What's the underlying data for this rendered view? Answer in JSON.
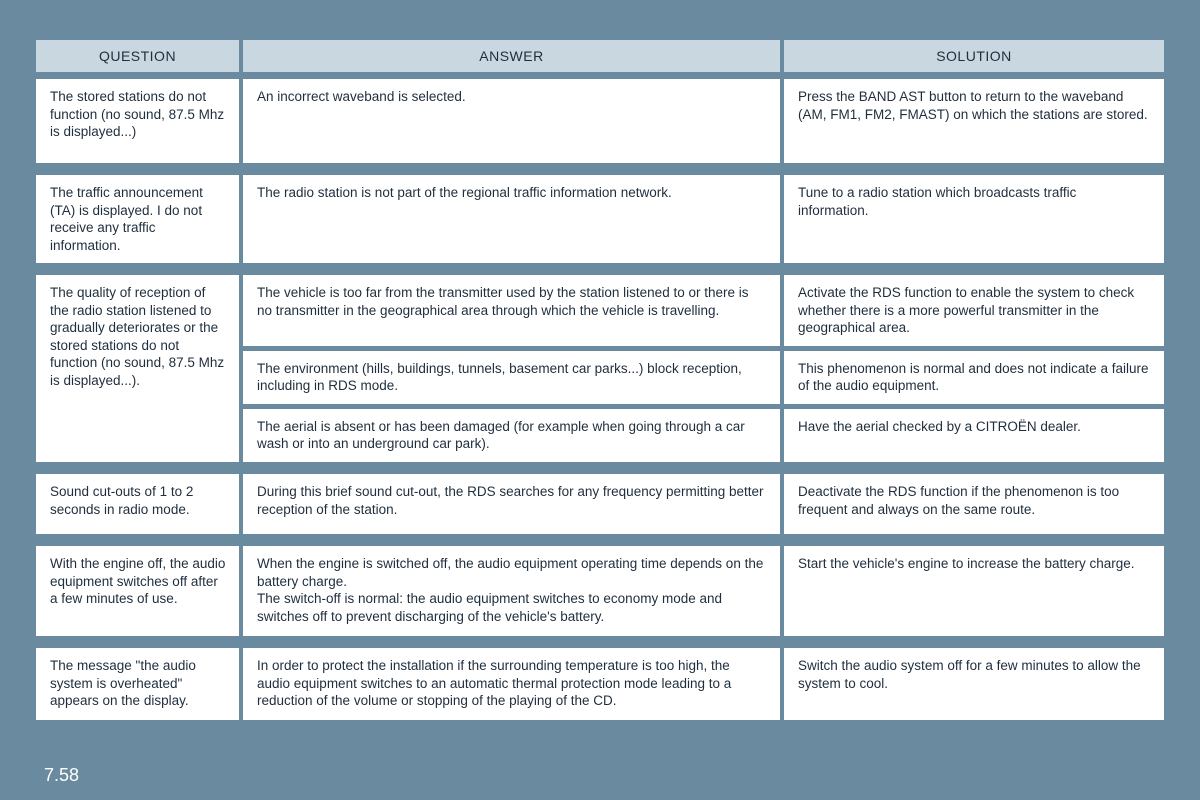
{
  "headers": {
    "question": "QUESTION",
    "answer": "ANSWER",
    "solution": "SOLUTION"
  },
  "rows": [
    {
      "question": "The stored stations do not function (no sound, 87.5 Mhz is displayed...)",
      "pairs": [
        {
          "answer": "An incorrect waveband is selected.",
          "solution": "Press the BAND AST button to return to the waveband (AM, FM1, FM2, FMAST) on which the stations are stored."
        }
      ],
      "minHeight": "84px"
    },
    {
      "question": "The traffic announcement (TA) is displayed. I do not receive any traffic information.",
      "pairs": [
        {
          "answer": "The radio station is not part of the regional traffic information network.",
          "solution": "Tune to a radio station which broadcasts traffic information."
        }
      ],
      "minHeight": "84px"
    },
    {
      "question": "The quality of reception of the radio station listened to gradually deteriorates or the stored stations do not function (no sound, 87.5 Mhz is displayed...).",
      "pairs": [
        {
          "answer": "The vehicle is too far from the transmitter used by the station listened to or there is no transmitter in the geographical area through which the vehicle is travelling.",
          "solution": "Activate the RDS function to enable the system to check whether there is a more powerful transmitter in the geographical area."
        },
        {
          "answer": "The environment (hills, buildings, tunnels, basement car parks...) block reception, including in RDS mode.",
          "solution": "This phenomenon is normal and does not indicate a failure of the audio equipment."
        },
        {
          "answer": "The aerial is absent or has been damaged (for example when going through a car wash or into an underground car park).",
          "solution": "Have the aerial checked by a CITROËN dealer."
        }
      ],
      "minHeight": "170px"
    },
    {
      "question": "Sound cut-outs of 1 to 2 seconds in radio mode.",
      "pairs": [
        {
          "answer": "During this brief sound cut-out, the RDS searches for any frequency permitting better reception of the station.",
          "solution": "Deactivate the RDS function if the phenomenon is too frequent and always on the same route."
        }
      ],
      "minHeight": "60px"
    },
    {
      "question": "With the engine off, the audio equipment switches off after a few minutes of use.",
      "pairs": [
        {
          "answer": "When the engine is switched off, the audio equipment operating time depends on the battery charge.\nThe switch-off is normal: the audio equipment switches to economy mode and switches off to prevent discharging of the vehicle's battery.",
          "solution": "Start the vehicle's engine to increase the battery charge."
        }
      ],
      "minHeight": "90px"
    },
    {
      "question": "The message \"the audio system is overheated\" appears on the display.",
      "pairs": [
        {
          "answer": "In order to protect the installation if the surrounding temperature is too high, the audio equipment switches to an automatic thermal protection mode leading to a reduction of the volume or stopping of the playing of the CD.",
          "solution": "Switch the audio system off for a few minutes to allow the system to cool."
        }
      ],
      "minHeight": "72px"
    }
  ],
  "pageNumber": "7.58"
}
